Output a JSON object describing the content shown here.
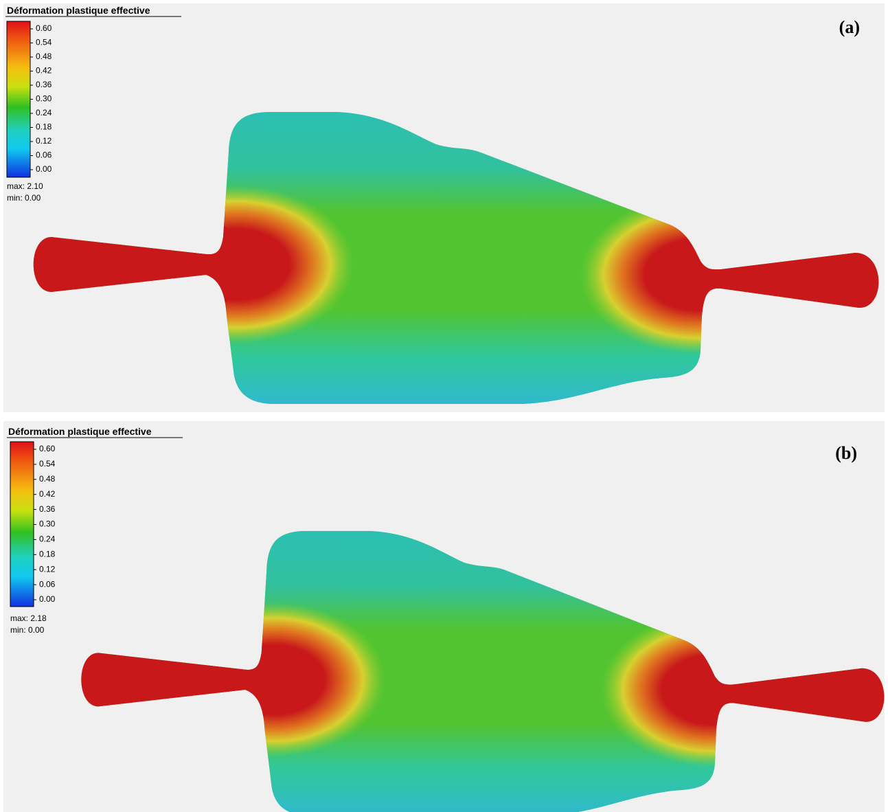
{
  "panels": [
    {
      "legend": {
        "title": "Déformation plastique effective",
        "ticks": [
          "0.60",
          "0.54",
          "0.48",
          "0.42",
          "0.36",
          "0.30",
          "0.24",
          "0.18",
          "0.12",
          "0.06",
          "0.00"
        ],
        "max": "max: 2.10",
        "min": "min:  0.00"
      },
      "label": "(a)"
    },
    {
      "legend": {
        "title": "Déformation plastique effective",
        "ticks": [
          "0.60",
          "0.54",
          "0.48",
          "0.42",
          "0.36",
          "0.30",
          "0.24",
          "0.18",
          "0.12",
          "0.06",
          "0.00"
        ],
        "max": "max: 2.18",
        "min": "min:  0.00"
      },
      "label": "(b)"
    }
  ]
}
